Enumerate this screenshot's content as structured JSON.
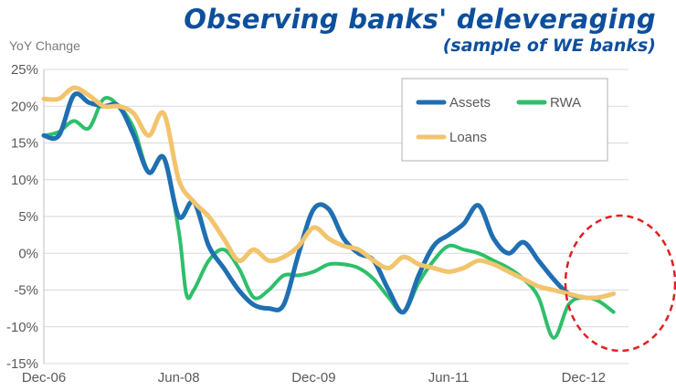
{
  "title": "Observing banks' deleveraging",
  "subtitle": "(sample of WE banks)",
  "chart_data": {
    "type": "line",
    "ylabel": "YoY Change",
    "ylim": [
      -15,
      25
    ],
    "y_ticks": [
      "25%",
      "20%",
      "15%",
      "10%",
      "5%",
      "0%",
      "-5%",
      "-10%",
      "-15%"
    ],
    "y_tick_values": [
      25,
      20,
      15,
      10,
      5,
      0,
      -5,
      -10,
      -15
    ],
    "x_ticks": [
      "Dec-06",
      "Jun-08",
      "Dec-09",
      "Jun-11",
      "Dec-12"
    ],
    "x_tick_positions": [
      0,
      18,
      36,
      54,
      72
    ],
    "x_range": [
      0,
      78
    ],
    "grid": true,
    "legend": "top-right",
    "series": [
      {
        "name": "Assets",
        "color": "#1f6fb2",
        "points": [
          [
            0,
            16
          ],
          [
            2,
            16
          ],
          [
            4,
            21.5
          ],
          [
            6,
            20.5
          ],
          [
            8,
            20
          ],
          [
            10,
            20
          ],
          [
            12,
            16
          ],
          [
            14,
            11
          ],
          [
            16,
            13
          ],
          [
            18,
            5
          ],
          [
            20,
            7
          ],
          [
            22,
            1
          ],
          [
            24,
            -2
          ],
          [
            26,
            -5
          ],
          [
            28,
            -7
          ],
          [
            30,
            -7.5
          ],
          [
            32,
            -7
          ],
          [
            34,
            0
          ],
          [
            36,
            6
          ],
          [
            38,
            6
          ],
          [
            40,
            2
          ],
          [
            42,
            0
          ],
          [
            44,
            -1
          ],
          [
            46,
            -5
          ],
          [
            48,
            -8
          ],
          [
            50,
            -3
          ],
          [
            52,
            1
          ],
          [
            54,
            2.5
          ],
          [
            56,
            4
          ],
          [
            58,
            6.5
          ],
          [
            60,
            2
          ],
          [
            62,
            0
          ],
          [
            64,
            1.5
          ],
          [
            66,
            -1
          ],
          [
            68,
            -3.5
          ],
          [
            70,
            -5.5
          ],
          [
            72,
            -6
          ]
        ]
      },
      {
        "name": "RWA",
        "color": "#2ebf6a",
        "points": [
          [
            0,
            16
          ],
          [
            2,
            16.5
          ],
          [
            4,
            18
          ],
          [
            6,
            17
          ],
          [
            8,
            21
          ],
          [
            10,
            20
          ],
          [
            12,
            17
          ],
          [
            14,
            11
          ],
          [
            16,
            13
          ],
          [
            18,
            3
          ],
          [
            19,
            -5.5
          ],
          [
            20,
            -5
          ],
          [
            22,
            -1
          ],
          [
            24,
            0.5
          ],
          [
            26,
            -2
          ],
          [
            28,
            -6
          ],
          [
            30,
            -5
          ],
          [
            32,
            -3
          ],
          [
            34,
            -3
          ],
          [
            36,
            -2.5
          ],
          [
            38,
            -1.5
          ],
          [
            40,
            -1.5
          ],
          [
            42,
            -2
          ],
          [
            44,
            -3.5
          ],
          [
            46,
            -6
          ],
          [
            48,
            -8
          ],
          [
            50,
            -4
          ],
          [
            52,
            -1
          ],
          [
            54,
            1
          ],
          [
            56,
            0.5
          ],
          [
            58,
            0
          ],
          [
            60,
            -1
          ],
          [
            62,
            -2
          ],
          [
            64,
            -3.5
          ],
          [
            66,
            -6
          ],
          [
            68,
            -11.5
          ],
          [
            70,
            -7
          ],
          [
            72,
            -6
          ],
          [
            74,
            -6.5
          ],
          [
            76,
            -8
          ]
        ]
      },
      {
        "name": "Loans",
        "color": "#f2c46d",
        "points": [
          [
            0,
            21
          ],
          [
            2,
            21
          ],
          [
            4,
            22.5
          ],
          [
            6,
            21.5
          ],
          [
            8,
            20
          ],
          [
            10,
            20
          ],
          [
            12,
            19
          ],
          [
            14,
            16
          ],
          [
            16,
            19
          ],
          [
            18,
            10
          ],
          [
            20,
            7
          ],
          [
            22,
            5
          ],
          [
            24,
            2
          ],
          [
            26,
            -1
          ],
          [
            28,
            0.5
          ],
          [
            30,
            -1
          ],
          [
            32,
            -0.5
          ],
          [
            34,
            1
          ],
          [
            36,
            3.5
          ],
          [
            38,
            2
          ],
          [
            40,
            1
          ],
          [
            42,
            0.5
          ],
          [
            44,
            -1
          ],
          [
            46,
            -2
          ],
          [
            48,
            -0.5
          ],
          [
            50,
            -1.5
          ],
          [
            52,
            -2
          ],
          [
            54,
            -2.5
          ],
          [
            56,
            -2
          ],
          [
            58,
            -1
          ],
          [
            60,
            -1.5
          ],
          [
            62,
            -2.5
          ],
          [
            64,
            -3.5
          ],
          [
            66,
            -4.5
          ],
          [
            68,
            -5
          ],
          [
            70,
            -5.5
          ],
          [
            72,
            -6
          ],
          [
            74,
            -6
          ],
          [
            76,
            -5.5
          ]
        ]
      }
    ],
    "annotation": "red dashed ellipse around the Dec-12 period"
  }
}
